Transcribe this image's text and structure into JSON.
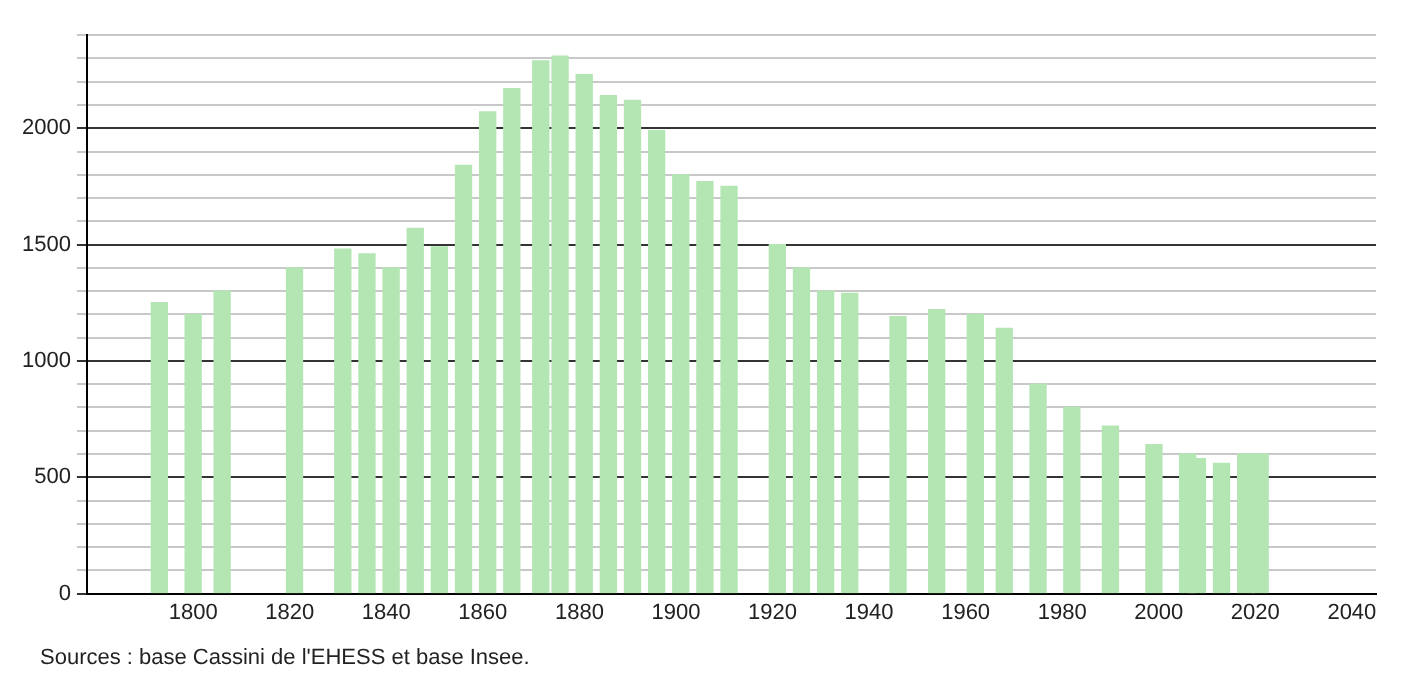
{
  "chart_data": {
    "type": "bar",
    "x": [
      1793,
      1800,
      1806,
      1821,
      1831,
      1836,
      1841,
      1846,
      1851,
      1856,
      1861,
      1866,
      1872,
      1876,
      1881,
      1886,
      1891,
      1896,
      1901,
      1906,
      1911,
      1921,
      1926,
      1931,
      1936,
      1946,
      1954,
      1962,
      1968,
      1975,
      1982,
      1990,
      1999,
      2006,
      2008,
      2013,
      2018,
      2021
    ],
    "values": [
      1250,
      1200,
      1300,
      1400,
      1480,
      1460,
      1400,
      1570,
      1490,
      1840,
      2070,
      2170,
      2290,
      2310,
      2230,
      2140,
      2120,
      1990,
      1800,
      1770,
      1750,
      1500,
      1400,
      1300,
      1290,
      1190,
      1220,
      1200,
      1140,
      900,
      800,
      720,
      640,
      600,
      580,
      560,
      600,
      600
    ],
    "color": "#b3e6b3",
    "xlim": [
      1778,
      2045
    ],
    "xticks": [
      1800,
      1820,
      1840,
      1860,
      1880,
      1900,
      1920,
      1940,
      1960,
      1980,
      2000,
      2020,
      2040
    ],
    "ylim": [
      0,
      2400
    ],
    "yticks": [
      0,
      {
        "value": 100,
        "label": null
      },
      {
        "value": 200,
        "label": null
      },
      {
        "value": 300,
        "label": null
      },
      {
        "value": 400,
        "label": null
      },
      500,
      {
        "value": 600,
        "label": null
      },
      {
        "value": 700,
        "label": null
      },
      {
        "value": 800,
        "label": null
      },
      {
        "value": 900,
        "label": null
      },
      1000,
      {
        "value": 1100,
        "label": null
      },
      {
        "value": 1200,
        "label": null
      },
      {
        "value": 1300,
        "label": null
      },
      {
        "value": 1400,
        "label": null
      },
      1500,
      {
        "value": 1600,
        "label": null
      },
      {
        "value": 1700,
        "label": null
      },
      {
        "value": 1800,
        "label": null
      },
      {
        "value": 1900,
        "label": null
      },
      2000,
      {
        "value": 2100,
        "label": null
      },
      {
        "value": 2200,
        "label": null
      },
      {
        "value": 2300,
        "label": null
      },
      {
        "value": 2400,
        "label": null
      }
    ],
    "grid": "y",
    "annotations": [
      "Sources : base Cassini de l'EHESS et base Insee."
    ]
  }
}
